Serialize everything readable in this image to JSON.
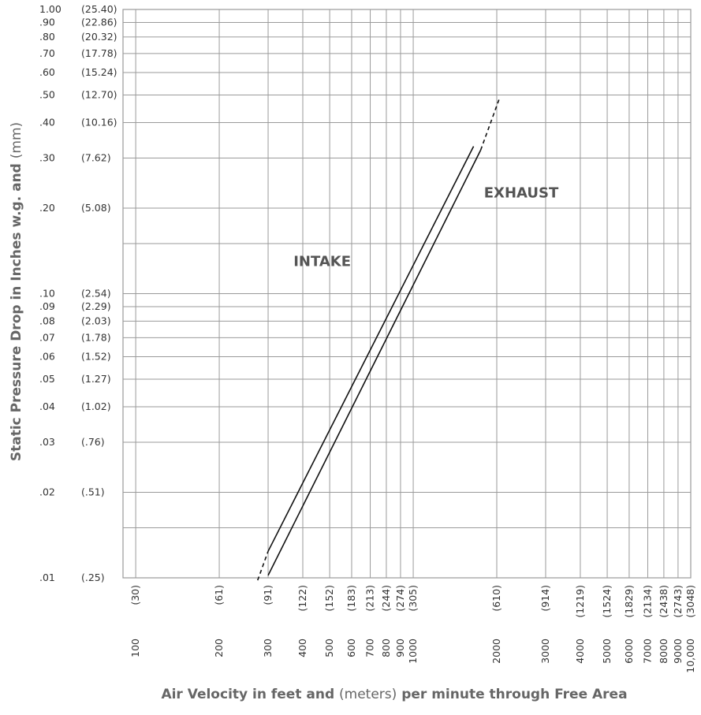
{
  "chart_data": {
    "type": "line",
    "title": "",
    "xlabel": {
      "part1": "Air Velocity in feet and",
      "part2": "(meters)",
      "part3": "per minute through Free Area"
    },
    "ylabel": {
      "part1": "Static Pressure Drop in Inches w.g. and",
      "part2": "(mm)"
    },
    "x_scale": "log",
    "y_scale": "log",
    "xlim": [
      90,
      10000
    ],
    "ylim": [
      0.01,
      1.0
    ],
    "grid": true,
    "x_ticks": [
      {
        "value": 100,
        "label": "100",
        "metric": "(30)"
      },
      {
        "value": 200,
        "label": "200",
        "metric": "(61)"
      },
      {
        "value": 300,
        "label": "300",
        "metric": "(91)"
      },
      {
        "value": 400,
        "label": "400",
        "metric": "(122)"
      },
      {
        "value": 500,
        "label": "500",
        "metric": "(152)"
      },
      {
        "value": 600,
        "label": "600",
        "metric": "(183)"
      },
      {
        "value": 700,
        "label": "700",
        "metric": "(213)"
      },
      {
        "value": 800,
        "label": "800",
        "metric": "(244)"
      },
      {
        "value": 900,
        "label": "900",
        "metric": "(274)"
      },
      {
        "value": 1000,
        "label": "1000",
        "metric": "(305)"
      },
      {
        "value": 2000,
        "label": "2000",
        "metric": "(610)"
      },
      {
        "value": 3000,
        "label": "3000",
        "metric": "(914)"
      },
      {
        "value": 4000,
        "label": "4000",
        "metric": "(1219)"
      },
      {
        "value": 5000,
        "label": "5000",
        "metric": "(1524)"
      },
      {
        "value": 6000,
        "label": "6000",
        "metric": "(1829)"
      },
      {
        "value": 7000,
        "label": "7000",
        "metric": "(2134)"
      },
      {
        "value": 8000,
        "label": "8000",
        "metric": "(2438)"
      },
      {
        "value": 9000,
        "label": "9000",
        "metric": "(2743)"
      },
      {
        "value": 10000,
        "label": "10,000",
        "metric": "(3048)"
      }
    ],
    "y_ticks": [
      {
        "value": 1.0,
        "label": "1.00",
        "metric": "(25.40)"
      },
      {
        "value": 0.9,
        "label": ".90",
        "metric": "(22.86)"
      },
      {
        "value": 0.8,
        "label": ".80",
        "metric": "(20.32)"
      },
      {
        "value": 0.7,
        "label": ".70",
        "metric": "(17.78)"
      },
      {
        "value": 0.6,
        "label": ".60",
        "metric": "(15.24)"
      },
      {
        "value": 0.5,
        "label": ".50",
        "metric": "(12.70)"
      },
      {
        "value": 0.4,
        "label": ".40",
        "metric": "(10.16)"
      },
      {
        "value": 0.3,
        "label": ".30",
        "metric": "(7.62)"
      },
      {
        "value": 0.2,
        "label": ".20",
        "metric": "(5.08)"
      },
      {
        "value": 0.1,
        "label": ".10",
        "metric": "(2.54)"
      },
      {
        "value": 0.09,
        "label": ".09",
        "metric": "(2.29)"
      },
      {
        "value": 0.08,
        "label": ".08",
        "metric": "(2.03)"
      },
      {
        "value": 0.07,
        "label": ".07",
        "metric": "(1.78)"
      },
      {
        "value": 0.06,
        "label": ".06",
        "metric": "(1.52)"
      },
      {
        "value": 0.05,
        "label": ".05",
        "metric": "(1.27)"
      },
      {
        "value": 0.04,
        "label": ".04",
        "metric": "(1.02)"
      },
      {
        "value": 0.03,
        "label": ".03",
        "metric": "(.76)"
      },
      {
        "value": 0.02,
        "label": ".02",
        "metric": "(.51)"
      },
      {
        "value": 0.01,
        "label": ".01",
        "metric": "(.25)"
      }
    ],
    "extra_grid_y": [
      0.15,
      0.015
    ],
    "series": [
      {
        "name": "INTAKE",
        "color": "#111111",
        "solid": {
          "x": [
            300,
            1650
          ],
          "y": [
            0.0124,
            0.33
          ]
        },
        "dashed": {
          "x": [
            275,
            300
          ],
          "y": [
            0.0098,
            0.0124
          ]
        }
      },
      {
        "name": "EXHAUST",
        "color": "#111111",
        "solid": {
          "x": [
            300,
            1750
          ],
          "y": [
            0.0102,
            0.32
          ]
        },
        "dashed": {
          "x": [
            1750,
            2050
          ],
          "y": [
            0.32,
            0.49
          ]
        }
      }
    ],
    "annotations": [
      {
        "text": "INTAKE",
        "x": 470,
        "y": 0.125
      },
      {
        "text": "EXHAUST",
        "x": 2450,
        "y": 0.218
      }
    ]
  }
}
